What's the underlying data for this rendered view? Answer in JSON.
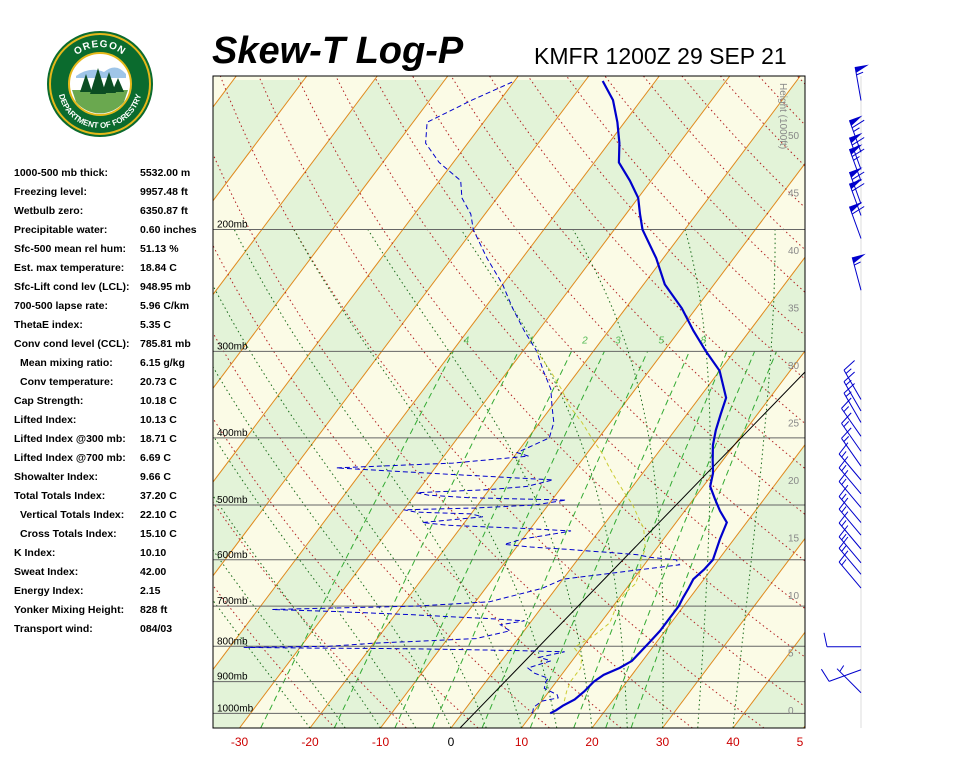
{
  "header": {
    "title": "Skew-T Log-P",
    "station": "KMFR 1200Z 29 SEP 21"
  },
  "logo": {
    "top_text": "OREGON",
    "bottom_text": "DEPARTMENT OF FORESTRY",
    "ring_color": "#0b6b2e",
    "accent_color": "#e5b81a"
  },
  "indices": [
    {
      "label": "1000-500 mb thick:",
      "value": "5532.00 m"
    },
    {
      "label": "Freezing level:",
      "value": "9957.48 ft"
    },
    {
      "label": "Wetbulb zero:",
      "value": "6350.87 ft"
    },
    {
      "label": "Precipitable water:",
      "value": "0.60 inches"
    },
    {
      "label": "Sfc-500 mean rel hum:",
      "value": "51.13 %"
    },
    {
      "label": "Est. max temperature:",
      "value": "18.84 C"
    },
    {
      "label": "Sfc-Lift cond lev (LCL):",
      "value": "948.95 mb"
    },
    {
      "label": "700-500 lapse rate:",
      "value": "5.96 C/km"
    },
    {
      "label": "ThetaE index:",
      "value": "5.35 C"
    },
    {
      "label": "Conv cond level (CCL):",
      "value": "785.81 mb"
    },
    {
      "label": "Mean mixing ratio:",
      "value": "6.15 g/kg"
    },
    {
      "label": "Conv temperature:",
      "value": "20.73 C"
    },
    {
      "label": "Cap Strength:",
      "value": "10.18 C"
    },
    {
      "label": "Lifted Index:",
      "value": "10.13 C"
    },
    {
      "label": "Lifted Index @300 mb:",
      "value": "18.71 C"
    },
    {
      "label": "Lifted Index @700 mb:",
      "value": "6.69 C"
    },
    {
      "label": "Showalter Index:",
      "value": "9.66 C"
    },
    {
      "label": "Total Totals Index:",
      "value": "37.20 C"
    },
    {
      "label": "Vertical Totals Index:",
      "value": "22.10 C"
    },
    {
      "label": "Cross Totals Index:",
      "value": "15.10 C"
    },
    {
      "label": "K Index:",
      "value": "10.10"
    },
    {
      "label": "Sweat Index:",
      "value": "42.00"
    },
    {
      "label": "Energy Index:",
      "value": "2.15"
    },
    {
      "label": "Yonker Mixing Height:",
      "value": "828 ft"
    },
    {
      "label": "Transport wind:",
      "value": "084/03"
    }
  ],
  "chart_data": {
    "type": "line",
    "title": "Skew-T Log-P",
    "subtitle": "KMFR 1200Z 29 SEP 21",
    "x_axis": {
      "unit": "C",
      "ticks": [
        -30,
        -20,
        -10,
        0,
        10,
        20,
        30,
        40
      ],
      "corner_tick_label": "5"
    },
    "pressure_axis": {
      "unit": "mb",
      "scale": "log",
      "levels": [
        1000,
        900,
        800,
        700,
        600,
        500,
        400,
        300,
        200
      ],
      "labels": [
        "1000mb",
        "900mb",
        "800mb",
        "700mb",
        "600mb",
        "500mb",
        "400mb",
        "300mb",
        "200mb"
      ]
    },
    "height_axis": {
      "label": "Height (1000ft)",
      "ticks": [
        0,
        5,
        10,
        15,
        20,
        25,
        30,
        35,
        40,
        45,
        50
      ]
    },
    "mixing_ratio_labels": [
      "4",
      "1",
      "2",
      "3",
      "5",
      "8"
    ],
    "grid": true,
    "series": [
      {
        "kind": "temperature",
        "color": "#0000cc",
        "points": [
          [
            1000,
            12.5
          ],
          [
            990,
            13
          ],
          [
            975,
            13.5
          ],
          [
            955,
            14.5
          ],
          [
            930,
            15
          ],
          [
            900,
            15.3
          ],
          [
            880,
            16
          ],
          [
            860,
            17.5
          ],
          [
            840,
            18.5
          ],
          [
            810,
            18.8
          ],
          [
            790,
            19
          ],
          [
            760,
            19.3
          ],
          [
            730,
            19.3
          ],
          [
            700,
            19.3
          ],
          [
            680,
            19
          ],
          [
            660,
            18.8
          ],
          [
            640,
            18.5
          ],
          [
            620,
            19
          ],
          [
            600,
            19.2
          ],
          [
            560,
            18
          ],
          [
            530,
            17.2
          ],
          [
            510,
            15
          ],
          [
            490,
            13
          ],
          [
            470,
            11
          ],
          [
            450,
            10
          ],
          [
            430,
            8.5
          ],
          [
            410,
            7
          ],
          [
            390,
            5.8
          ],
          [
            370,
            4.8
          ],
          [
            350,
            3.8
          ],
          [
            320,
            0
          ],
          [
            300,
            -4
          ],
          [
            280,
            -8
          ],
          [
            260,
            -12
          ],
          [
            240,
            -17
          ],
          [
            220,
            -21
          ],
          [
            200,
            -26
          ],
          [
            190,
            -28
          ],
          [
            180,
            -30
          ],
          [
            170,
            -33
          ],
          [
            160,
            -36.5
          ],
          [
            150,
            -38.5
          ],
          [
            140,
            -41
          ],
          [
            130,
            -44
          ],
          [
            122,
            -47.5
          ]
        ]
      },
      {
        "kind": "dewpoint",
        "color": "#0000cc",
        "points": [
          [
            1000,
            10
          ],
          [
            980,
            9.5
          ],
          [
            960,
            10
          ],
          [
            950,
            12
          ],
          [
            940,
            11.5
          ],
          [
            920,
            9
          ],
          [
            900,
            8.5
          ],
          [
            890,
            8.5
          ],
          [
            875,
            6
          ],
          [
            860,
            4.5
          ],
          [
            840,
            7
          ],
          [
            830,
            5
          ],
          [
            815,
            8
          ],
          [
            812,
            2
          ],
          [
            808,
            -10
          ],
          [
            806,
            -18
          ],
          [
            805,
            -28
          ],
          [
            803,
            -38
          ],
          [
            800,
            -26
          ],
          [
            792,
            -20
          ],
          [
            785,
            -12
          ],
          [
            780,
            -6
          ],
          [
            760,
            -2
          ],
          [
            745,
            -4
          ],
          [
            735,
            -1
          ],
          [
            730,
            -6
          ],
          [
            725,
            -12
          ],
          [
            720,
            -18
          ],
          [
            712,
            -30
          ],
          [
            708,
            -38
          ],
          [
            700,
            -18
          ],
          [
            690,
            -8
          ],
          [
            660,
            -2
          ],
          [
            640,
            0
          ],
          [
            620,
            10
          ],
          [
            610,
            15
          ],
          [
            600,
            14
          ],
          [
            595,
            10
          ],
          [
            590,
            8
          ],
          [
            580,
            -2
          ],
          [
            575,
            -8
          ],
          [
            570,
            -12
          ],
          [
            560,
            -10
          ],
          [
            548,
            -5
          ],
          [
            545,
            -4
          ],
          [
            540,
            -12
          ],
          [
            535,
            -22
          ],
          [
            530,
            -26
          ],
          [
            520,
            -18
          ],
          [
            515,
            -20
          ],
          [
            512,
            -28
          ],
          [
            508,
            -30
          ],
          [
            505,
            -20
          ],
          [
            500,
            -12
          ],
          [
            492,
            -8
          ],
          [
            488,
            -22
          ],
          [
            484,
            -28
          ],
          [
            480,
            -30
          ],
          [
            475,
            -20
          ],
          [
            470,
            -15
          ],
          [
            460,
            -12
          ],
          [
            450,
            -30
          ],
          [
            442,
            -44
          ],
          [
            435,
            -28
          ],
          [
            425,
            -18
          ],
          [
            420,
            -20
          ],
          [
            400,
            -17
          ],
          [
            380,
            -18
          ],
          [
            360,
            -20
          ],
          [
            340,
            -22
          ],
          [
            320,
            -25
          ],
          [
            300,
            -28
          ],
          [
            280,
            -32
          ],
          [
            260,
            -36
          ],
          [
            240,
            -40
          ],
          [
            220,
            -45
          ],
          [
            200,
            -50
          ],
          [
            190,
            -52
          ],
          [
            180,
            -55
          ],
          [
            170,
            -57
          ],
          [
            160,
            -62
          ],
          [
            150,
            -66
          ],
          [
            140,
            -68
          ],
          [
            130,
            -64
          ],
          [
            122,
            -60
          ]
        ]
      },
      {
        "kind": "parcel",
        "color": "#cccc33",
        "points": [
          [
            960,
            13.2
          ],
          [
            930,
            12.5
          ],
          [
            900,
            12
          ],
          [
            860,
            12
          ],
          [
            830,
            11
          ],
          [
            805,
            9
          ],
          [
            800,
            9
          ],
          [
            790,
            9.5
          ],
          [
            770,
            10.5
          ],
          [
            740,
            11.3
          ],
          [
            715,
            10.8
          ],
          [
            700,
            10.3
          ],
          [
            670,
            10.3
          ],
          [
            650,
            10.8
          ],
          [
            620,
            10
          ],
          [
            600,
            9
          ],
          [
            580,
            8.5
          ],
          [
            560,
            7.3
          ],
          [
            540,
            6
          ],
          [
            520,
            4
          ],
          [
            500,
            2
          ],
          [
            480,
            -0.5
          ],
          [
            460,
            -3
          ],
          [
            440,
            -5.5
          ],
          [
            420,
            -8
          ],
          [
            400,
            -11
          ],
          [
            380,
            -14
          ],
          [
            360,
            -17.5
          ],
          [
            340,
            -20.5
          ],
          [
            320,
            -24
          ],
          [
            300,
            -28
          ]
        ]
      }
    ],
    "wind_barbs": [
      {
        "hgt_kft": 53,
        "dir": 350,
        "kt": 55
      },
      {
        "hgt_kft": 48.5,
        "dir": 340,
        "kt": 65
      },
      {
        "hgt_kft": 47,
        "dir": 340,
        "kt": 65
      },
      {
        "hgt_kft": 46,
        "dir": 340,
        "kt": 65
      },
      {
        "hgt_kft": 44,
        "dir": 340,
        "kt": 65
      },
      {
        "hgt_kft": 43,
        "dir": 340,
        "kt": 60
      },
      {
        "hgt_kft": 41,
        "dir": 340,
        "kt": 60
      },
      {
        "hgt_kft": 36.5,
        "dir": 345,
        "kt": 55
      },
      {
        "hgt_kft": 27,
        "dir": 330,
        "kt": 15
      },
      {
        "hgt_kft": 26,
        "dir": 330,
        "kt": 15
      },
      {
        "hgt_kft": 25,
        "dir": 330,
        "kt": 15
      },
      {
        "hgt_kft": 23.8,
        "dir": 325,
        "kt": 15
      },
      {
        "hgt_kft": 22.5,
        "dir": 325,
        "kt": 15
      },
      {
        "hgt_kft": 21.2,
        "dir": 325,
        "kt": 15
      },
      {
        "hgt_kft": 20,
        "dir": 320,
        "kt": 15
      },
      {
        "hgt_kft": 18.8,
        "dir": 320,
        "kt": 15
      },
      {
        "hgt_kft": 17.6,
        "dir": 320,
        "kt": 15
      },
      {
        "hgt_kft": 16.3,
        "dir": 320,
        "kt": 15
      },
      {
        "hgt_kft": 15.2,
        "dir": 320,
        "kt": 15
      },
      {
        "hgt_kft": 14,
        "dir": 320,
        "kt": 15
      },
      {
        "hgt_kft": 12.8,
        "dir": 320,
        "kt": 15
      },
      {
        "hgt_kft": 11.8,
        "dir": 320,
        "kt": 15
      },
      {
        "hgt_kft": 10.6,
        "dir": 320,
        "kt": 15
      },
      {
        "hgt_kft": 5.5,
        "dir": 270,
        "kt": 10
      },
      {
        "hgt_kft": 3.5,
        "dir": 250,
        "kt": 10
      },
      {
        "hgt_kft": 1.5,
        "dir": 315,
        "kt": 5
      }
    ]
  }
}
